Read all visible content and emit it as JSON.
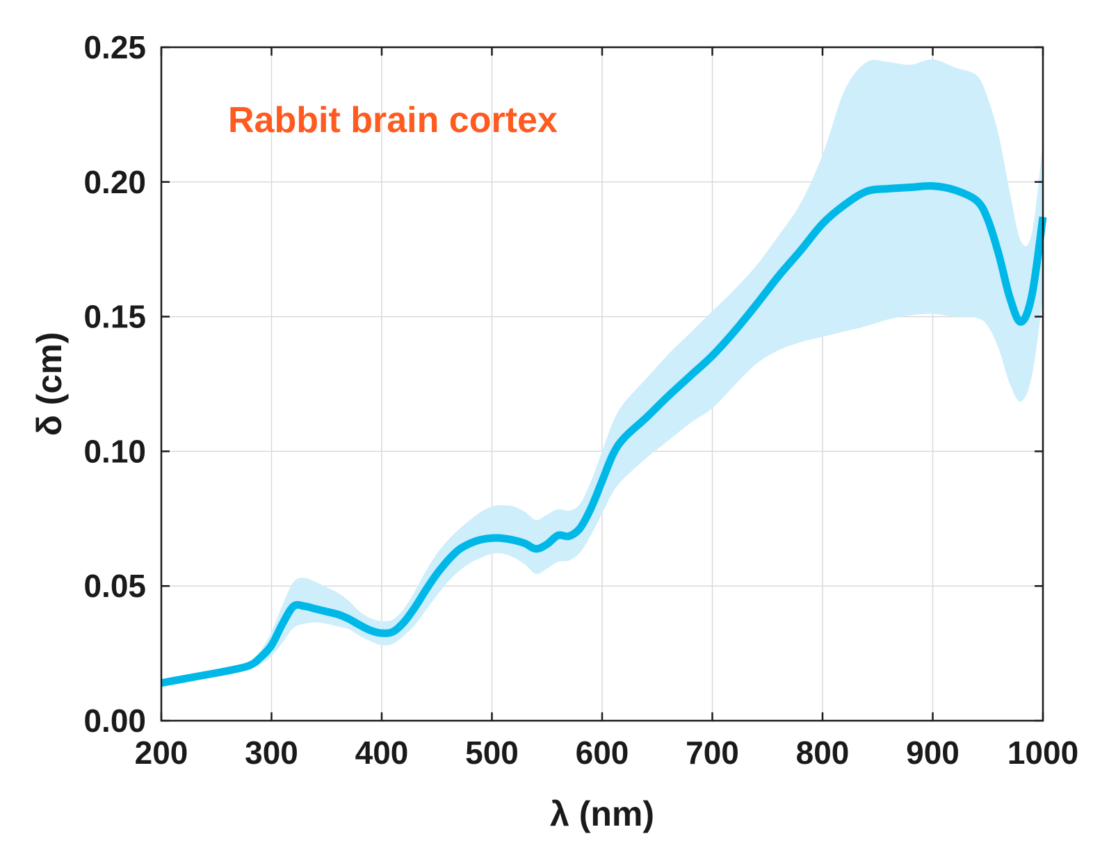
{
  "chart_data": {
    "type": "line",
    "title": "",
    "annotation": "Rabbit brain cortex",
    "xlabel": "λ (nm)",
    "ylabel": "δ (cm)",
    "xlim": [
      200,
      1000
    ],
    "ylim": [
      0,
      0.25
    ],
    "grid": true,
    "x_ticks": [
      200,
      300,
      400,
      500,
      600,
      700,
      800,
      900,
      1000
    ],
    "x_tick_labels": [
      "200",
      "300",
      "400",
      "500",
      "600",
      "700",
      "800",
      "900",
      "1000"
    ],
    "y_ticks": [
      0,
      0.05,
      0.1,
      0.15,
      0.2,
      0.25
    ],
    "y_tick_labels": [
      "0.00",
      "0.05",
      "0.10",
      "0.15",
      "0.20",
      "0.25"
    ],
    "colors": {
      "line": "#00b8e8",
      "band": "#cdeefa",
      "annotation": "#ff5a1f"
    },
    "series": [
      {
        "x": [
          200,
          220,
          240,
          260,
          280,
          290,
          300,
          310,
          320,
          330,
          340,
          350,
          360,
          370,
          380,
          390,
          400,
          410,
          420,
          430,
          440,
          450,
          460,
          470,
          480,
          490,
          500,
          510,
          520,
          530,
          540,
          550,
          560,
          570,
          580,
          590,
          600,
          610,
          620,
          640,
          660,
          680,
          700,
          720,
          740,
          760,
          780,
          800,
          820,
          840,
          860,
          880,
          900,
          920,
          940,
          950,
          960,
          970,
          980,
          990,
          1000
        ],
        "y": [
          0.014,
          0.0155,
          0.017,
          0.0185,
          0.0205,
          0.0235,
          0.028,
          0.036,
          0.0425,
          0.0425,
          0.0415,
          0.0405,
          0.0395,
          0.0378,
          0.0355,
          0.0335,
          0.0325,
          0.033,
          0.0365,
          0.042,
          0.0485,
          0.0545,
          0.0595,
          0.0635,
          0.0658,
          0.0672,
          0.0678,
          0.0677,
          0.067,
          0.0658,
          0.0638,
          0.0655,
          0.0688,
          0.0685,
          0.0715,
          0.079,
          0.089,
          0.099,
          0.105,
          0.1125,
          0.1205,
          0.128,
          0.1355,
          0.1445,
          0.1545,
          0.165,
          0.1745,
          0.1845,
          0.1915,
          0.1965,
          0.1975,
          0.198,
          0.1985,
          0.197,
          0.193,
          0.186,
          0.173,
          0.157,
          0.148,
          0.158,
          0.187
        ]
      }
    ],
    "band": {
      "x": [
        200,
        220,
        240,
        260,
        280,
        290,
        300,
        310,
        320,
        330,
        340,
        350,
        360,
        370,
        380,
        390,
        400,
        410,
        420,
        430,
        440,
        450,
        460,
        470,
        480,
        490,
        500,
        510,
        520,
        530,
        540,
        550,
        560,
        570,
        580,
        590,
        600,
        610,
        620,
        640,
        660,
        680,
        700,
        720,
        740,
        760,
        780,
        800,
        820,
        840,
        860,
        880,
        900,
        920,
        940,
        950,
        960,
        970,
        980,
        990,
        1000
      ],
      "upper": [
        0.0145,
        0.016,
        0.0175,
        0.019,
        0.0215,
        0.026,
        0.033,
        0.043,
        0.0515,
        0.053,
        0.0515,
        0.0495,
        0.0475,
        0.0445,
        0.0405,
        0.038,
        0.037,
        0.0375,
        0.0415,
        0.048,
        0.0555,
        0.062,
        0.067,
        0.071,
        0.0745,
        0.0775,
        0.0795,
        0.08,
        0.0795,
        0.0775,
        0.0745,
        0.0765,
        0.0785,
        0.078,
        0.0805,
        0.089,
        0.1,
        0.111,
        0.118,
        0.127,
        0.136,
        0.144,
        0.152,
        0.16,
        0.169,
        0.18,
        0.192,
        0.21,
        0.234,
        0.2445,
        0.2445,
        0.2435,
        0.2455,
        0.2425,
        0.2395,
        0.231,
        0.217,
        0.196,
        0.178,
        0.181,
        0.215
      ],
      "lower": [
        0.0135,
        0.015,
        0.0165,
        0.018,
        0.0195,
        0.021,
        0.024,
        0.029,
        0.0345,
        0.036,
        0.0365,
        0.036,
        0.035,
        0.034,
        0.0315,
        0.0295,
        0.028,
        0.0285,
        0.0315,
        0.0355,
        0.041,
        0.0465,
        0.0515,
        0.0555,
        0.0585,
        0.0605,
        0.062,
        0.062,
        0.0605,
        0.058,
        0.0545,
        0.0565,
        0.059,
        0.0595,
        0.0625,
        0.069,
        0.077,
        0.085,
        0.09,
        0.0975,
        0.104,
        0.1105,
        0.116,
        0.1245,
        0.1325,
        0.1375,
        0.1405,
        0.1425,
        0.1445,
        0.1465,
        0.149,
        0.1505,
        0.151,
        0.15,
        0.1495,
        0.1465,
        0.138,
        0.125,
        0.1185,
        0.128,
        0.157
      ]
    }
  }
}
